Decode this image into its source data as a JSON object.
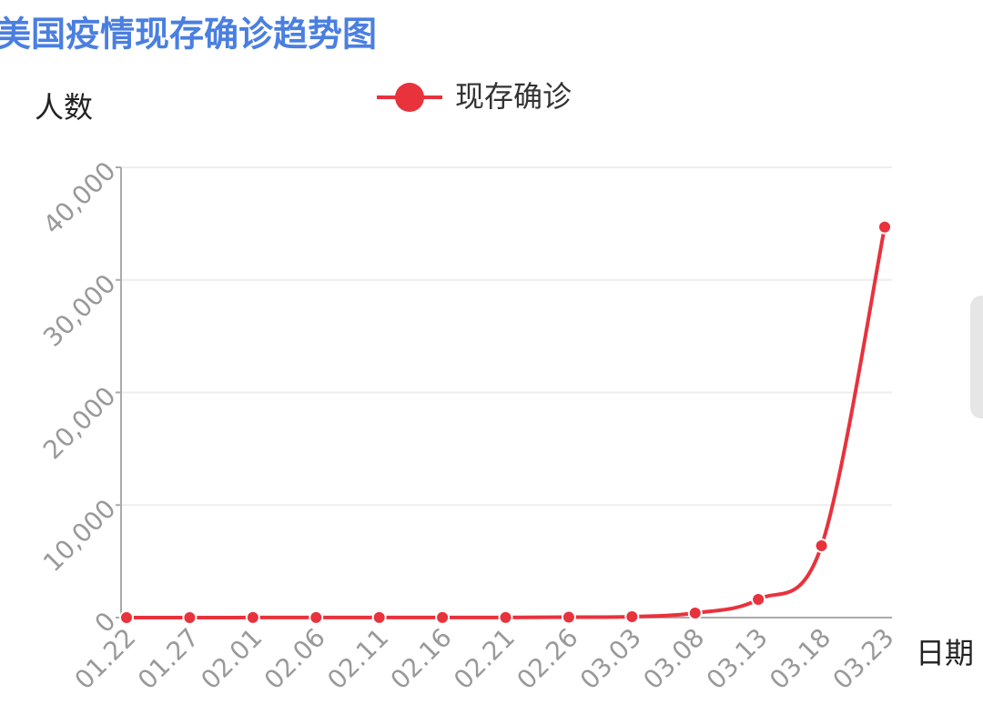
{
  "chart_data": {
    "type": "line",
    "title": "美国疫情现存确诊趋势图",
    "y_label": "人数",
    "x_label": "日期",
    "categories": [
      "01.22",
      "01.27",
      "02.01",
      "02.06",
      "02.11",
      "02.16",
      "02.21",
      "02.26",
      "03.03",
      "03.08",
      "03.13",
      "03.18",
      "03.23"
    ],
    "series": [
      {
        "name": "现存确诊",
        "color": "#e8323c",
        "values": [
          1,
          3,
          6,
          10,
          10,
          13,
          13,
          40,
          80,
          404,
          1616,
          6384,
          34700
        ]
      }
    ],
    "ylim": [
      0,
      40000
    ],
    "yticks": [
      0,
      {
        "value": 10000,
        "label": "10,000"
      },
      {
        "value": 20000,
        "label": "20,000"
      },
      {
        "value": 30000,
        "label": "30,000"
      },
      {
        "value": 40000,
        "label": "40,000"
      }
    ],
    "grid": true
  }
}
